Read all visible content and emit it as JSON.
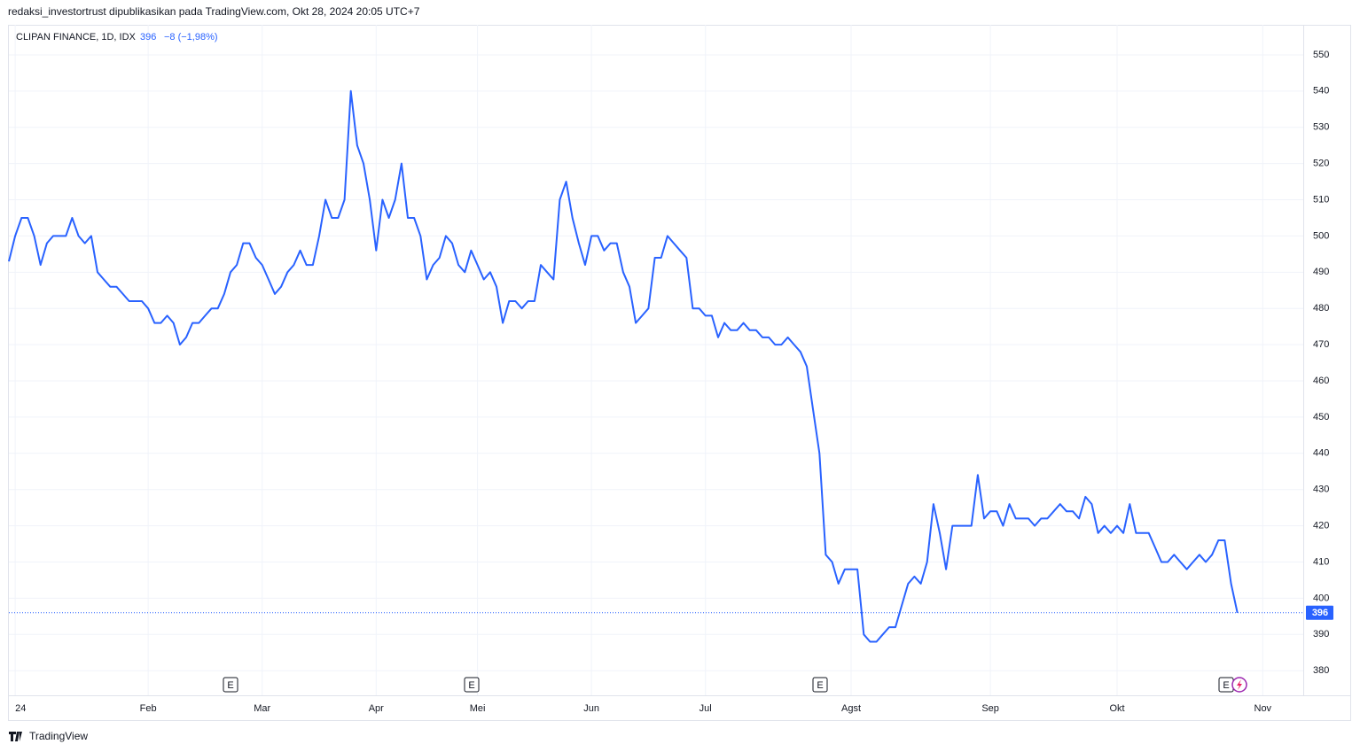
{
  "header": "redaksi_investortrust dipublikasikan pada TradingView.com, Okt 28, 2024 20:05 UTC+7",
  "footer": "TradingView",
  "chart_data": {
    "type": "line",
    "title": "CLIPAN FINANCE, 1D, IDX",
    "change": "−8 (−1,98%)",
    "events": [
      "E",
      "E",
      "E",
      "E"
    ],
    "series": [
      {
        "name": "CLIPAN FINANCE",
        "color": "#2962ff",
        "values": [
          493,
          500,
          505,
          505,
          500,
          492,
          498,
          500,
          500,
          500,
          505,
          500,
          498,
          500,
          490,
          488,
          486,
          486,
          484,
          482,
          482,
          482,
          480,
          476,
          476,
          478,
          476,
          470,
          472,
          476,
          476,
          478,
          480,
          480,
          484,
          490,
          492,
          498,
          498,
          494,
          492,
          488,
          484,
          486,
          490,
          492,
          496,
          492,
          492,
          500,
          510,
          505,
          505,
          510,
          540,
          525,
          520,
          510,
          496,
          510,
          505,
          510,
          520,
          505,
          505,
          500,
          488,
          492,
          494,
          500,
          498,
          492,
          490,
          496,
          492,
          488,
          490,
          486,
          476,
          482,
          482,
          480,
          482,
          482,
          492,
          490,
          488,
          510,
          515,
          505,
          498,
          492,
          500,
          500,
          496,
          498,
          498,
          490,
          486,
          476,
          478,
          480,
          494,
          494,
          500,
          498,
          496,
          494,
          480,
          480,
          478,
          478,
          472,
          476,
          474,
          474,
          476,
          474,
          474,
          472,
          472,
          470,
          470,
          472,
          470,
          468,
          464,
          452,
          440,
          412,
          410,
          404,
          408,
          408,
          408,
          390,
          388,
          388,
          390,
          392,
          392,
          398,
          404,
          406,
          404,
          410,
          426,
          418,
          408,
          420,
          420,
          420,
          420,
          434,
          422,
          424,
          424,
          420,
          426,
          422,
          422,
          422,
          420,
          422,
          422,
          424,
          426,
          424,
          424,
          422,
          428,
          426,
          418,
          420,
          418,
          420,
          418,
          426,
          418,
          418,
          418,
          414,
          410,
          410,
          412,
          410,
          408,
          410,
          412,
          410,
          412,
          416,
          416,
          404,
          396
        ]
      }
    ],
    "ylim": [
      373.2,
      558.3
    ],
    "yticks": [
      380,
      390,
      400,
      410,
      420,
      430,
      440,
      450,
      460,
      470,
      480,
      490,
      500,
      510,
      520,
      530,
      540,
      550
    ],
    "xlim": [
      0,
      204.4
    ],
    "xticks": [
      {
        "value": 1,
        "label": "24"
      },
      {
        "value": 22,
        "label": "Feb"
      },
      {
        "value": 40,
        "label": "Mar"
      },
      {
        "value": 58,
        "label": "Apr"
      },
      {
        "value": 74,
        "label": "Mei"
      },
      {
        "value": 92,
        "label": "Jun"
      },
      {
        "value": 110,
        "label": "Jul"
      },
      {
        "value": 133,
        "label": "Agst"
      },
      {
        "value": 155,
        "label": "Sep"
      },
      {
        "value": 175,
        "label": "Okt"
      },
      {
        "value": 198,
        "label": "Nov"
      }
    ],
    "grid": true
  }
}
